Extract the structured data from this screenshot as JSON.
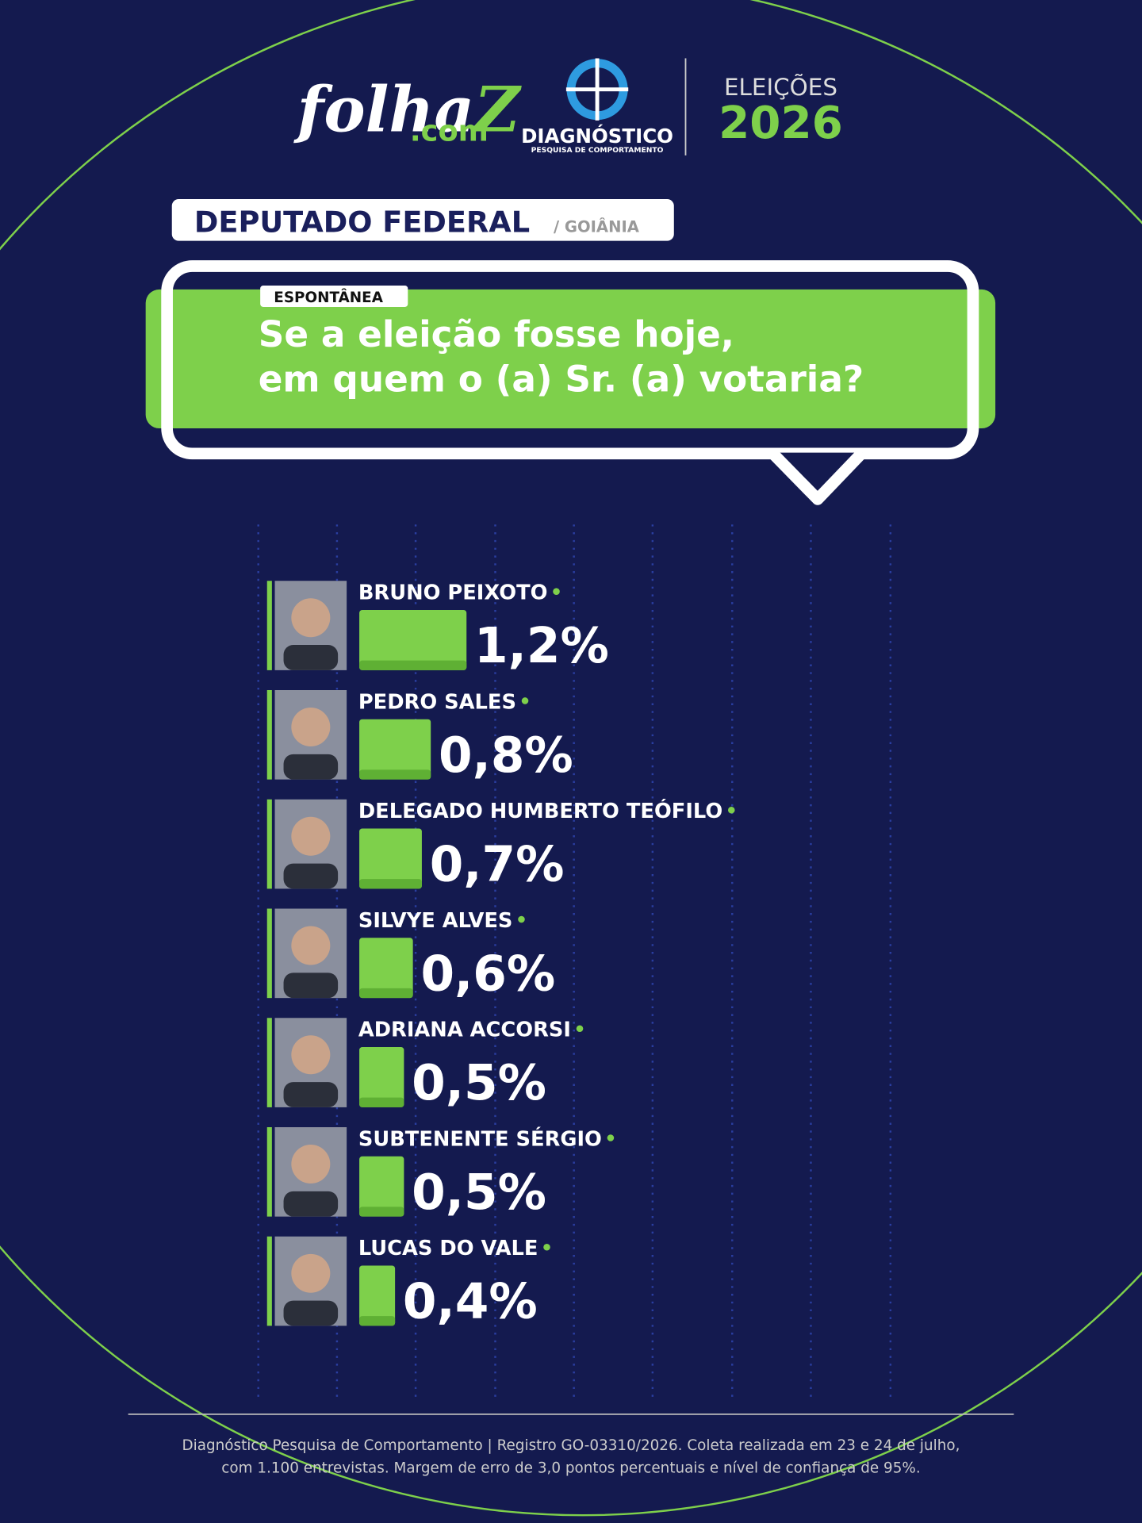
{
  "header": {
    "logo": {
      "folha": "folha",
      "z": "Z",
      "com": ".com"
    },
    "partner": {
      "name": "DIAGNÓSTICO",
      "tagline": "PESQUISA DE COMPORTAMENTO"
    },
    "election": {
      "label": "ELEIÇÕES",
      "year": "2026"
    }
  },
  "chart_data": {
    "type": "hbar",
    "title": "DEPUTADO FEDERAL",
    "subtitle": "/ GOIÂNIA",
    "tag": "ESPONTÂNEA",
    "question": [
      "Se a eleição fosse hoje,",
      "em quem o (a) Sr. (a) votaria?"
    ],
    "categories": [
      "BRUNO PEIXOTO",
      "PEDRO SALES",
      "DELEGADO HUMBERTO TEÓFILO",
      "SILVYE ALVES",
      "ADRIANA ACCORSI",
      "SUBTENENTE SÉRGIO",
      "LUCAS DO VALE"
    ],
    "values": [
      1.2,
      0.8,
      0.7,
      0.6,
      0.5,
      0.5,
      0.4
    ],
    "value_labels": [
      "1,2%",
      "0,8%",
      "0,7%",
      "0,6%",
      "0,5%",
      "0,5%",
      "0,4%"
    ],
    "color": "#7ed04b"
  },
  "footer": [
    "Diagnóstico Pesquisa de Comportamento | Registro GO-03310/2026. Coleta realizada em 23 e 24 de julho,",
    "com 1.100 entrevistas. Margem de erro de 3,0 pontos percentuais e nível de confiança de 95%."
  ]
}
